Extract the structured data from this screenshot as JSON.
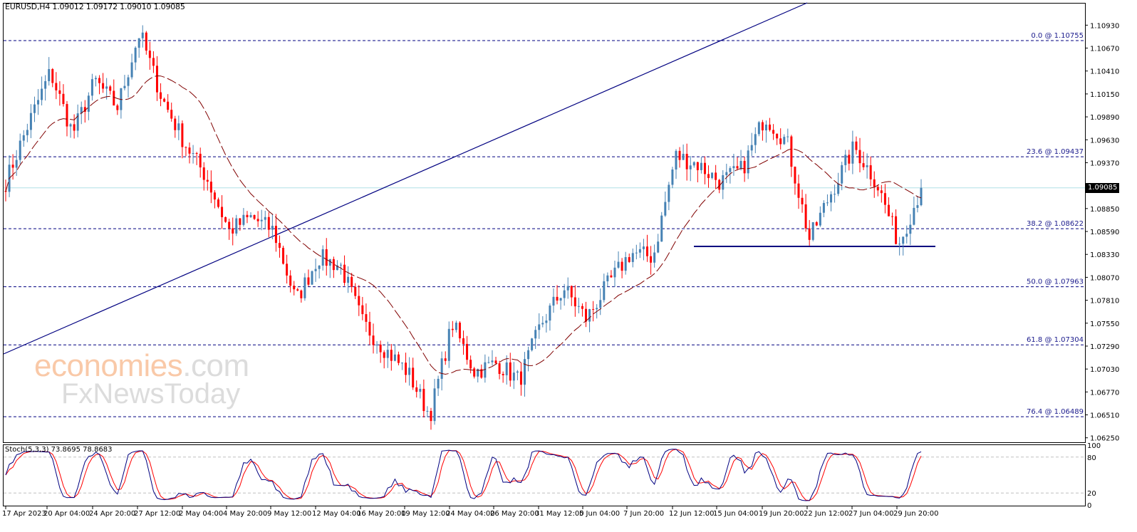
{
  "header": {
    "symbol": "EURUSD,H4",
    "ohlc": "1.09012 1.09172 1.09010 1.09085",
    "title": "EURUSD,H4  1.09012 1.09172 1.09010 1.09085"
  },
  "price_axis": {
    "ticks": [
      "1.10930",
      "1.10670",
      "1.10410",
      "1.10150",
      "1.09890",
      "1.09630",
      "1.09370",
      "1.09085",
      "1.08850",
      "1.08590",
      "1.08330",
      "1.08070",
      "1.07810",
      "1.07550",
      "1.07290",
      "1.07030",
      "1.06770",
      "1.06510",
      "1.06250"
    ],
    "current_price": "1.09085"
  },
  "fib_levels": [
    {
      "label": "0.0 @ 1.10755",
      "price": 1.10755
    },
    {
      "label": "23.6 @ 1.09437",
      "price": 1.09437
    },
    {
      "label": "38.2 @ 1.08622",
      "price": 1.08622
    },
    {
      "label": "50.0 @ 1.07963",
      "price": 1.07963
    },
    {
      "label": "61.8 @ 1.07304",
      "price": 1.07304
    },
    {
      "label": "76.4 @ 1.06489",
      "price": 1.06489
    }
  ],
  "stochastic": {
    "label": "Stoch(5,3,3) 73.8695 78.8683",
    "axis": [
      "100",
      "80",
      "20",
      "0"
    ]
  },
  "time_axis": [
    "17 Apr 2023",
    "20 Apr 04:00",
    "24 Apr 20:00",
    "27 Apr 12:00",
    "2 May 04:00",
    "4 May 20:00",
    "9 May 12:00",
    "12 May 04:00",
    "16 May 20:00",
    "19 May 12:00",
    "24 May 04:00",
    "26 May 20:00",
    "31 May 12:00",
    "5 Jun 04:00",
    "7 Jun 20:00",
    "12 Jun 12:00",
    "15 Jun 04:00",
    "19 Jun 20:00",
    "22 Jun 12:00",
    "27 Jun 04:00",
    "29 Jun 20:00"
  ],
  "watermark": {
    "line1_a": "economies",
    "line1_b": ".com",
    "line2": "FxNewsToday"
  },
  "colors": {
    "bull": "#4682b4",
    "bear": "#ff0000",
    "ma": "#800000",
    "fib": "#000080",
    "trendline": "#000080",
    "current_line": "#b0e0e6",
    "stoch_main": "#000080",
    "stoch_signal": "#ff0000"
  },
  "chart_data": {
    "type": "candlestick",
    "title": "EURUSD,H4",
    "ylim": [
      1.0625,
      1.1093
    ],
    "anchors": [
      [
        "17 Apr",
        1.0915
      ],
      [
        "20 Apr",
        1.098
      ],
      [
        "24 Apr",
        1.104
      ],
      [
        "26 Apr",
        1.097
      ],
      [
        "27 Apr",
        1.103
      ],
      [
        "2 May",
        1.1
      ],
      [
        "4 May",
        1.1085
      ],
      [
        "5 May",
        1.101
      ],
      [
        "9 May",
        1.096
      ],
      [
        "11 May",
        1.092
      ],
      [
        "12 May",
        1.086
      ],
      [
        "15 May",
        1.0875
      ],
      [
        "16 May",
        1.086
      ],
      [
        "18 May",
        1.078
      ],
      [
        "19 May",
        1.083
      ],
      [
        "22 May",
        1.082
      ],
      [
        "24 May",
        1.0755
      ],
      [
        "26 May",
        1.0725
      ],
      [
        "30 May",
        1.07
      ],
      [
        "31 May",
        1.065
      ],
      [
        "1 Jun",
        1.0755
      ],
      [
        "2 Jun",
        1.07
      ],
      [
        "5 Jun",
        1.071
      ],
      [
        "6 Jun",
        1.069
      ],
      [
        "7 Jun",
        1.0755
      ],
      [
        "8 Jun",
        1.0795
      ],
      [
        "9 Jun",
        1.076
      ],
      [
        "12 Jun",
        1.08
      ],
      [
        "13 Jun",
        1.0835
      ],
      [
        "14 Jun",
        1.083
      ],
      [
        "15 Jun",
        1.0945
      ],
      [
        "16 Jun",
        1.0935
      ],
      [
        "19 Jun",
        1.0915
      ],
      [
        "20 Jun",
        1.093
      ],
      [
        "21 Jun",
        1.099
      ],
      [
        "22 Jun",
        1.096
      ],
      [
        "23 Jun",
        1.085
      ],
      [
        "26 Jun",
        1.0905
      ],
      [
        "27 Jun",
        1.0955
      ],
      [
        "28 Jun",
        1.0915
      ],
      [
        "29 Jun",
        1.0845
      ],
      [
        "30 Jun",
        1.0908
      ]
    ],
    "indicators": [
      "MA (dashed, maroon)",
      "Stochastic(5,3,3)"
    ],
    "horizontal_support": 1.0846,
    "fib_retracement": {
      "0.0": 1.10755,
      "23.6": 1.09437,
      "38.2": 1.08622,
      "50.0": 1.07963,
      "61.8": 1.07304,
      "76.4": 1.06489
    },
    "current_price": 1.09085,
    "stochastic_last": {
      "main": 73.8695,
      "signal": 78.8683
    }
  }
}
